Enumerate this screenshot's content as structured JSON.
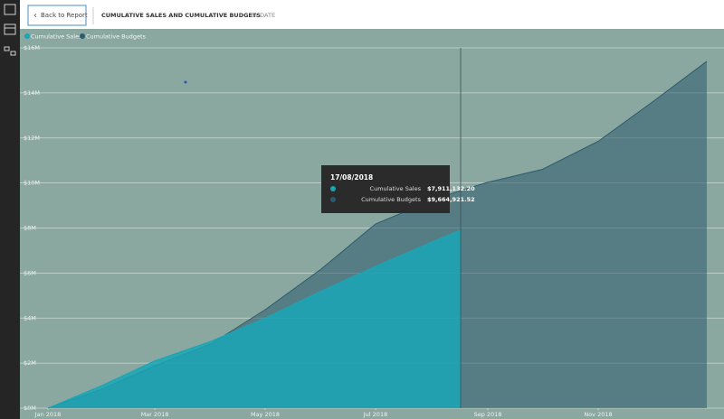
{
  "header": {
    "back_button": "Back to Report",
    "title": "CUMULATIVE SALES AND CUMULATIVE BUDGETS",
    "subtitle": "BY DATE"
  },
  "chart_data": {
    "type": "area",
    "x": [
      "2018-01-01",
      "2018-02-01",
      "2018-03-01",
      "2018-04-01",
      "2018-05-01",
      "2018-06-01",
      "2018-07-01",
      "2018-08-01",
      "2018-08-17",
      "2018-09-01",
      "2018-10-01",
      "2018-11-01",
      "2018-12-01",
      "2018-12-31"
    ],
    "series": [
      {
        "name": "Cumulative Sales",
        "color": "#1aa6b6",
        "values": [
          0,
          1050000,
          2100000,
          2970000,
          4000000,
          5200000,
          6300000,
          7380000,
          7911132.2,
          null,
          null,
          null,
          null,
          null
        ]
      },
      {
        "name": "Cumulative Budgets",
        "color": "#2c5a6e",
        "values": [
          0,
          880000,
          1880000,
          2850000,
          4370000,
          6180000,
          8180000,
          9220000,
          9664921.52,
          10030000,
          10600000,
          11850000,
          13600000,
          15400000
        ]
      }
    ],
    "xlim": [
      "2018-01-01",
      "2018-12-31"
    ],
    "xticks": [
      {
        "value": "2018-01-01",
        "label": "Jan 2018"
      },
      {
        "value": "2018-03-01",
        "label": "Mar 2018"
      },
      {
        "value": "2018-05-01",
        "label": "May 2018"
      },
      {
        "value": "2018-07-01",
        "label": "Jul 2018"
      },
      {
        "value": "2018-09-01",
        "label": "Sep 2018"
      },
      {
        "value": "2018-11-01",
        "label": "Nov 2018"
      }
    ],
    "ylim": [
      0,
      16000000
    ],
    "yticks": [
      {
        "value": 0,
        "label": "$0M"
      },
      {
        "value": 2000000,
        "label": "$2M"
      },
      {
        "value": 4000000,
        "label": "$4M"
      },
      {
        "value": 6000000,
        "label": "$6M"
      },
      {
        "value": 8000000,
        "label": "$8M"
      },
      {
        "value": 10000000,
        "label": "$10M"
      },
      {
        "value": 12000000,
        "label": "$12M"
      },
      {
        "value": 14000000,
        "label": "$14M"
      },
      {
        "value": 16000000,
        "label": "$16M"
      }
    ],
    "grid": true,
    "tooltip": {
      "date": "17/08/2018",
      "values": [
        {
          "value": 7911132.2,
          "label": "$7,911,132.20"
        },
        {
          "value": 9664921.52,
          "label": "$9,664,921.52"
        }
      ]
    }
  }
}
